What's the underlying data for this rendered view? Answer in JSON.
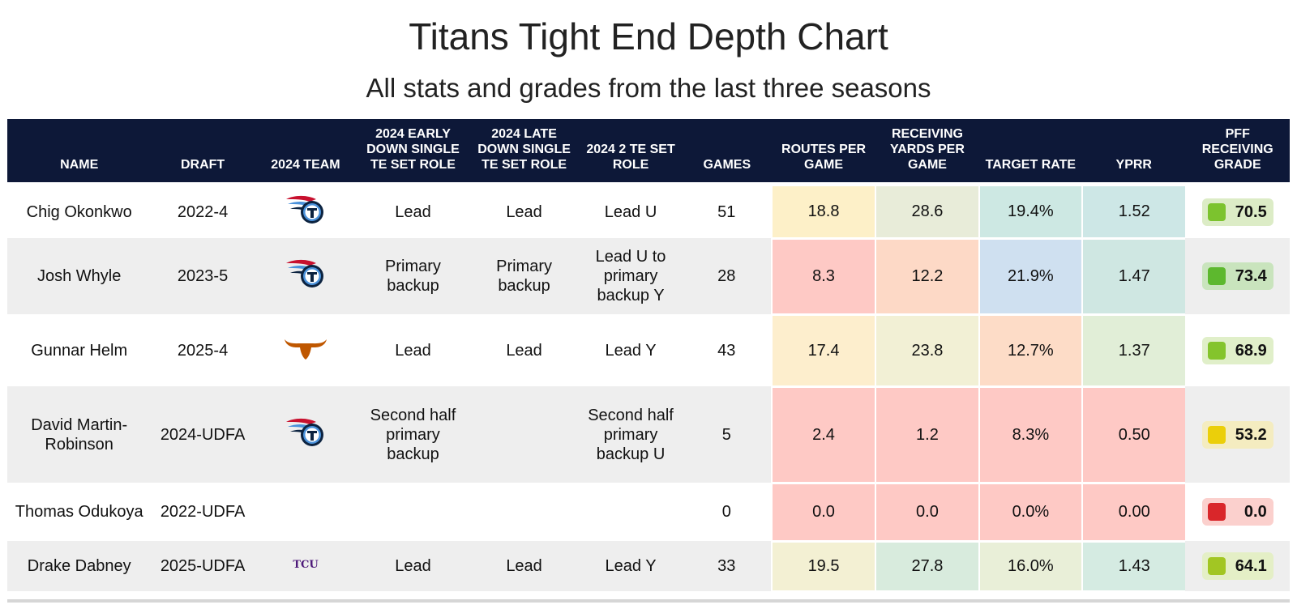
{
  "title": "Titans Tight End Depth Chart",
  "subtitle": "All stats and grades from the last three seasons",
  "columns": [
    "NAME",
    "DRAFT",
    "2024 TEAM",
    "2024 EARLY DOWN SINGLE TE SET ROLE",
    "2024 LATE DOWN SINGLE TE SET ROLE",
    "2024 2 TE SET ROLE",
    "GAMES",
    "ROUTES PER GAME",
    "RECEIVING YARDS PER GAME",
    "TARGET RATE",
    "YPRR",
    "PFF RECEIVING GRADE"
  ],
  "rows": [
    {
      "name": "Chig Okonkwo",
      "draft": "2022-4",
      "team_logo": "titans-logo-icon",
      "early": "Lead",
      "late": "Lead",
      "two_te": "Lead U",
      "games": "51",
      "routes": "18.8",
      "yards": "28.6",
      "target_rate": "19.4%",
      "yprr": "1.52",
      "grade": "70.5",
      "colors": {
        "routes": "#fdf0c8",
        "yards": "#e8ecd9",
        "target_rate": "#cde8e3",
        "yprr": "#cde7e6",
        "grade_bg": "#dcecc6",
        "grade_swatch": "#7cc32e"
      }
    },
    {
      "name": "Josh Whyle",
      "draft": "2023-5",
      "team_logo": "titans-logo-icon",
      "early": "Primary backup",
      "late": "Primary backup",
      "two_te": "Lead U to primary backup Y",
      "games": "28",
      "routes": "8.3",
      "yards": "12.2",
      "target_rate": "21.9%",
      "yprr": "1.47",
      "grade": "73.4",
      "colors": {
        "routes": "#fec9c5",
        "yards": "#fdd9c6",
        "target_rate": "#cfe0f0",
        "yprr": "#cfe7e2",
        "grade_bg": "#c9e4bd",
        "grade_swatch": "#5db82e"
      }
    },
    {
      "name": "Gunnar Helm",
      "draft": "2025-4",
      "team_logo": "longhorn-logo-icon",
      "early": "Lead",
      "late": "Lead",
      "two_te": "Lead Y",
      "games": "43",
      "routes": "17.4",
      "yards": "23.8",
      "target_rate": "12.7%",
      "yprr": "1.37",
      "grade": "68.9",
      "colors": {
        "routes": "#fdeecd",
        "yards": "#f2f0d5",
        "target_rate": "#fddcc7",
        "yprr": "#e1eed7",
        "grade_bg": "#e0efc9",
        "grade_swatch": "#84c42c"
      }
    },
    {
      "name": "David Martin-Robinson",
      "draft": "2024-UDFA",
      "team_logo": "titans-logo-icon",
      "early": "Second half primary backup",
      "late": "",
      "two_te": "Second half primary backup U",
      "games": "5",
      "routes": "2.4",
      "yards": "1.2",
      "target_rate": "8.3%",
      "yprr": "0.50",
      "grade": "53.2",
      "colors": {
        "routes": "#fec9c5",
        "yards": "#fec9c5",
        "target_rate": "#fec9c5",
        "yprr": "#fec9c5",
        "grade_bg": "#f4ecc0",
        "grade_swatch": "#ebcf0a"
      }
    },
    {
      "name": "Thomas Odukoya",
      "draft": "2022-UDFA",
      "team_logo": "",
      "early": "",
      "late": "",
      "two_te": "",
      "games": "0",
      "routes": "0.0",
      "yards": "0.0",
      "target_rate": "0.0%",
      "yprr": "0.00",
      "grade": "0.0",
      "colors": {
        "routes": "#fec9c5",
        "yards": "#fec9c5",
        "target_rate": "#fec9c5",
        "yprr": "#fec9c5",
        "grade_bg": "#fbd0cd",
        "grade_swatch": "#d9262a"
      }
    },
    {
      "name": "Drake Dabney",
      "draft": "2025-UDFA",
      "team_logo": "tcu-logo-icon",
      "early": "Lead",
      "late": "Lead",
      "two_te": "Lead Y",
      "games": "33",
      "routes": "19.5",
      "yards": "27.8",
      "target_rate": "16.0%",
      "yprr": "1.43",
      "grade": "64.1",
      "colors": {
        "routes": "#f3f0d3",
        "yards": "#d8ebdd",
        "target_rate": "#e9efd8",
        "yprr": "#d5ebe2",
        "grade_bg": "#e4efc6",
        "grade_swatch": "#a2c623"
      }
    }
  ],
  "chart_data": {
    "type": "table",
    "title": "Titans Tight End Depth Chart",
    "subtitle": "All stats and grades from the last three seasons",
    "columns": [
      "NAME",
      "DRAFT",
      "2024 TEAM",
      "2024 EARLY DOWN SINGLE TE SET ROLE",
      "2024 LATE DOWN SINGLE TE SET ROLE",
      "2024 2 TE SET ROLE",
      "GAMES",
      "ROUTES PER GAME",
      "RECEIVING YARDS PER GAME",
      "TARGET RATE",
      "YPRR",
      "PFF RECEIVING GRADE"
    ],
    "rows": [
      [
        "Chig Okonkwo",
        "2022-4",
        "Titans",
        "Lead",
        "Lead",
        "Lead U",
        51,
        18.8,
        28.6,
        "19.4%",
        1.52,
        70.5
      ],
      [
        "Josh Whyle",
        "2023-5",
        "Titans",
        "Primary backup",
        "Primary backup",
        "Lead U to primary backup Y",
        28,
        8.3,
        12.2,
        "21.9%",
        1.47,
        73.4
      ],
      [
        "Gunnar Helm",
        "2025-4",
        "Texas",
        "Lead",
        "Lead",
        "Lead Y",
        43,
        17.4,
        23.8,
        "12.7%",
        1.37,
        68.9
      ],
      [
        "David Martin-Robinson",
        "2024-UDFA",
        "Titans",
        "Second half primary backup",
        "",
        "Second half primary backup U",
        5,
        2.4,
        1.2,
        "8.3%",
        0.5,
        53.2
      ],
      [
        "Thomas Odukoya",
        "2022-UDFA",
        "",
        "",
        "",
        "",
        0,
        0.0,
        0.0,
        "0.0%",
        0.0,
        0.0
      ],
      [
        "Drake Dabney",
        "2025-UDFA",
        "TCU",
        "Lead",
        "Lead",
        "Lead Y",
        33,
        19.5,
        27.8,
        "16.0%",
        1.43,
        64.1
      ]
    ]
  }
}
